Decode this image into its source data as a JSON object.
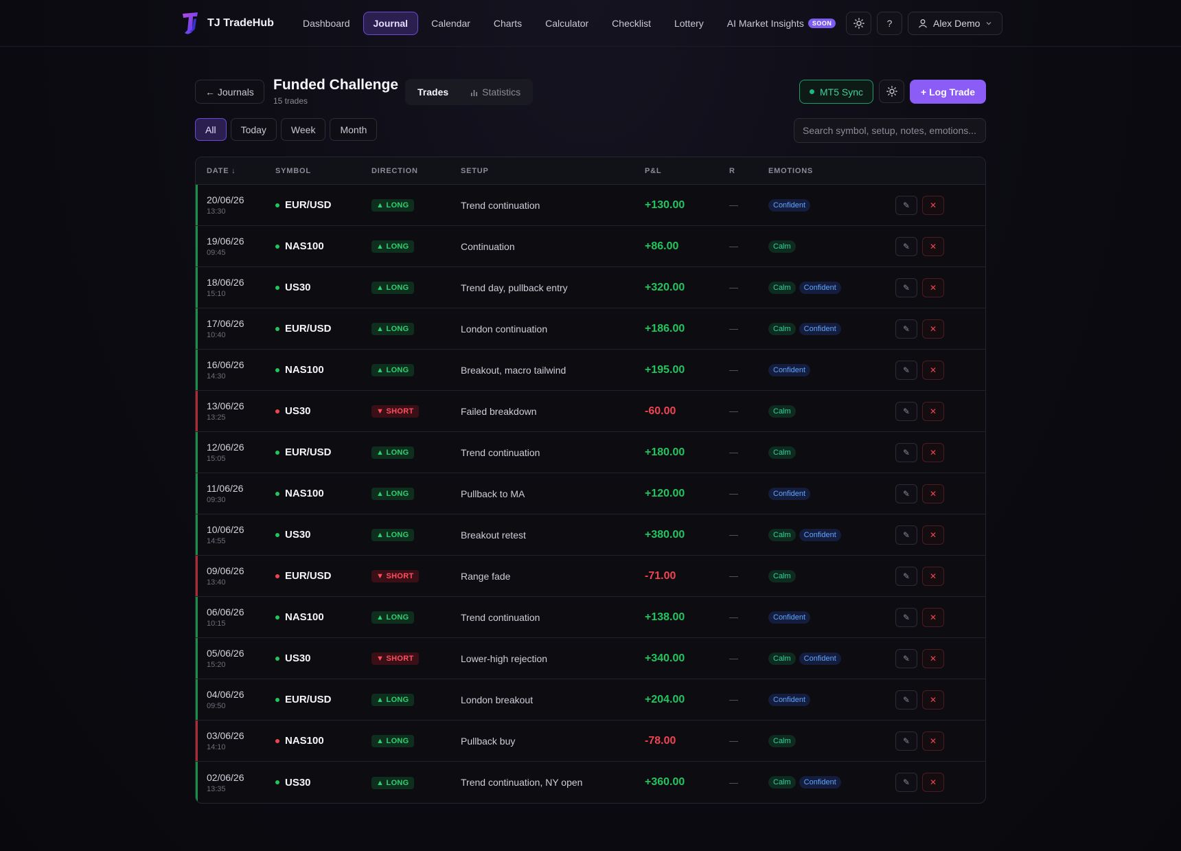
{
  "app": {
    "brand_name": "TJ TradeHub",
    "nav": [
      "Dashboard",
      "Journal",
      "Calendar",
      "Charts",
      "Calculator",
      "Checklist",
      "Lottery",
      "AI Market Insights"
    ],
    "nav_active": "Journal",
    "soon_badge": "SOON",
    "help_label": "?",
    "user_name": "Alex Demo"
  },
  "header": {
    "back_label": "← Journals",
    "title": "Funded Challenge",
    "count": "15 trades",
    "tabs": [
      "Trades",
      "Statistics"
    ],
    "mt5_label": "MT5 Sync",
    "log_trade_label": "+ Log Trade"
  },
  "filters": {
    "items": [
      "All",
      "Today",
      "Week",
      "Month"
    ],
    "active": "All",
    "search_placeholder": "Search symbol, setup, notes, emotions..."
  },
  "table": {
    "columns": [
      "DATE ↓",
      "SYMBOL",
      "DIRECTION",
      "SETUP",
      "P&L",
      "R",
      "EMOTIONS",
      ""
    ],
    "rows": [
      {
        "date": "20/06/26",
        "time": "13:30",
        "symbol": "EUR/USD",
        "direction": "LONG",
        "setup": "Trend continuation",
        "pnl": "+130.00",
        "r": "—",
        "emotions": [
          "Confident"
        ],
        "win": true
      },
      {
        "date": "19/06/26",
        "time": "09:45",
        "symbol": "NAS100",
        "direction": "LONG",
        "setup": "Continuation",
        "pnl": "+86.00",
        "r": "—",
        "emotions": [
          "Calm"
        ],
        "win": true
      },
      {
        "date": "18/06/26",
        "time": "15:10",
        "symbol": "US30",
        "direction": "LONG",
        "setup": "Trend day, pullback entry",
        "pnl": "+320.00",
        "r": "—",
        "emotions": [
          "Calm",
          "Confident"
        ],
        "win": true
      },
      {
        "date": "17/06/26",
        "time": "10:40",
        "symbol": "EUR/USD",
        "direction": "LONG",
        "setup": "London continuation",
        "pnl": "+186.00",
        "r": "—",
        "emotions": [
          "Calm",
          "Confident"
        ],
        "win": true
      },
      {
        "date": "16/06/26",
        "time": "14:30",
        "symbol": "NAS100",
        "direction": "LONG",
        "setup": "Breakout, macro tailwind",
        "pnl": "+195.00",
        "r": "—",
        "emotions": [
          "Confident"
        ],
        "win": true
      },
      {
        "date": "13/06/26",
        "time": "13:25",
        "symbol": "US30",
        "direction": "SHORT",
        "setup": "Failed breakdown",
        "pnl": "-60.00",
        "r": "—",
        "emotions": [
          "Calm"
        ],
        "win": false
      },
      {
        "date": "12/06/26",
        "time": "15:05",
        "symbol": "EUR/USD",
        "direction": "LONG",
        "setup": "Trend continuation",
        "pnl": "+180.00",
        "r": "—",
        "emotions": [
          "Calm"
        ],
        "win": true
      },
      {
        "date": "11/06/26",
        "time": "09:30",
        "symbol": "NAS100",
        "direction": "LONG",
        "setup": "Pullback to MA",
        "pnl": "+120.00",
        "r": "—",
        "emotions": [
          "Confident"
        ],
        "win": true
      },
      {
        "date": "10/06/26",
        "time": "14:55",
        "symbol": "US30",
        "direction": "LONG",
        "setup": "Breakout retest",
        "pnl": "+380.00",
        "r": "—",
        "emotions": [
          "Calm",
          "Confident"
        ],
        "win": true
      },
      {
        "date": "09/06/26",
        "time": "13:40",
        "symbol": "EUR/USD",
        "direction": "SHORT",
        "setup": "Range fade",
        "pnl": "-71.00",
        "r": "—",
        "emotions": [
          "Calm"
        ],
        "win": false
      },
      {
        "date": "06/06/26",
        "time": "10:15",
        "symbol": "NAS100",
        "direction": "LONG",
        "setup": "Trend continuation",
        "pnl": "+138.00",
        "r": "—",
        "emotions": [
          "Confident"
        ],
        "win": true
      },
      {
        "date": "05/06/26",
        "time": "15:20",
        "symbol": "US30",
        "direction": "SHORT",
        "setup": "Lower-high rejection",
        "pnl": "+340.00",
        "r": "—",
        "emotions": [
          "Calm",
          "Confident"
        ],
        "win": true
      },
      {
        "date": "04/06/26",
        "time": "09:50",
        "symbol": "EUR/USD",
        "direction": "LONG",
        "setup": "London breakout",
        "pnl": "+204.00",
        "r": "—",
        "emotions": [
          "Confident"
        ],
        "win": true
      },
      {
        "date": "03/06/26",
        "time": "14:10",
        "symbol": "NAS100",
        "direction": "LONG",
        "setup": "Pullback buy",
        "pnl": "-78.00",
        "r": "—",
        "emotions": [
          "Calm"
        ],
        "win": false
      },
      {
        "date": "02/06/26",
        "time": "13:35",
        "symbol": "US30",
        "direction": "LONG",
        "setup": "Trend continuation, NY open",
        "pnl": "+360.00",
        "r": "—",
        "emotions": [
          "Calm",
          "Confident"
        ],
        "win": true
      }
    ]
  },
  "colors": {
    "accent": "#8b5cf6",
    "win": "#22c55e",
    "loss": "#f04452",
    "calm": "#34d399",
    "confident": "#60a5fa"
  }
}
